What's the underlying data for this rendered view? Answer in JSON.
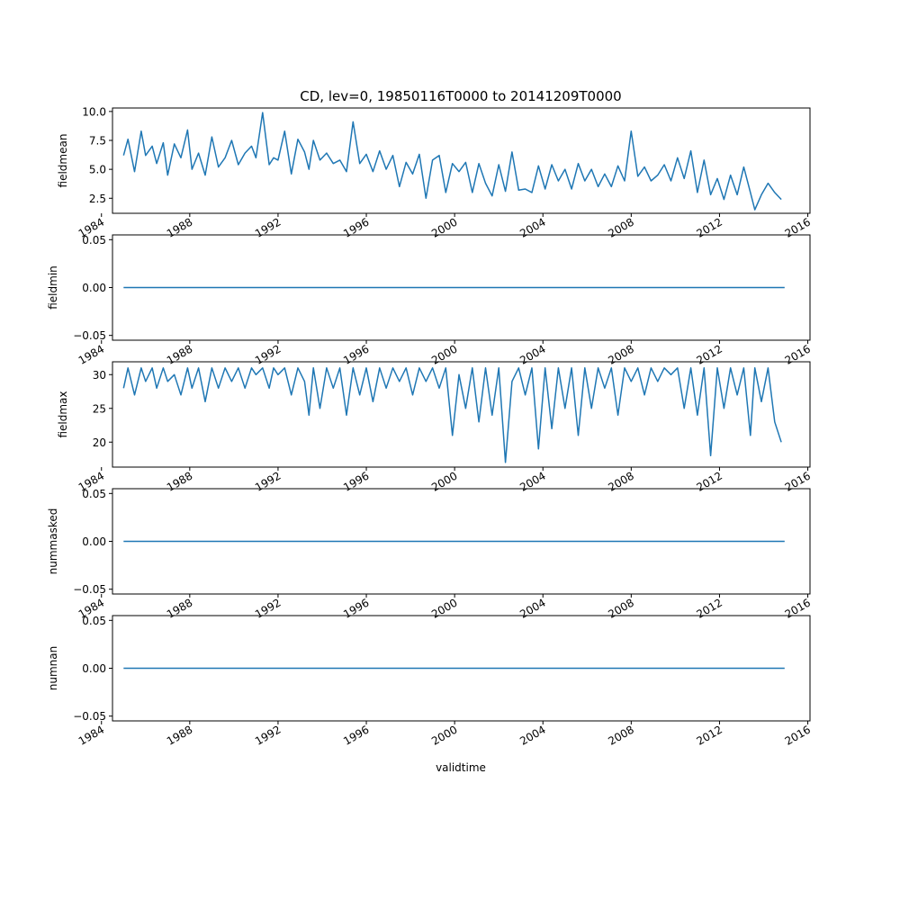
{
  "figure": {
    "title": "CD, lev=0, 19850116T0000 to 20141209T0000",
    "xlabel": "validtime"
  },
  "colors": {
    "line": "#1f77b4",
    "axes": "#000000",
    "background": "#ffffff"
  },
  "chart_data": [
    {
      "type": "line",
      "ylabel": "fieldmean",
      "xlim": [
        1984.5,
        2016.1
      ],
      "ylim": [
        1.2,
        10.3
      ],
      "yticks": [
        2.5,
        5.0,
        7.5,
        10.0
      ],
      "ytick_labels": [
        "2.5",
        "5.0",
        "7.5",
        "10.0"
      ],
      "xticks": [
        1984,
        1988,
        1992,
        1996,
        2000,
        2004,
        2008,
        2012,
        2016
      ],
      "xtick_labels": [
        "1984",
        "1988",
        "1992",
        "1996",
        "2000",
        "2004",
        "2008",
        "2012",
        "2016"
      ],
      "x": [
        1985.0,
        1985.2,
        1985.5,
        1985.8,
        1986.0,
        1986.3,
        1986.5,
        1986.8,
        1987.0,
        1987.3,
        1987.6,
        1987.9,
        1988.1,
        1988.4,
        1988.7,
        1989.0,
        1989.3,
        1989.6,
        1989.9,
        1990.2,
        1990.5,
        1990.8,
        1991.0,
        1991.3,
        1991.6,
        1991.8,
        1992.0,
        1992.3,
        1992.6,
        1992.9,
        1993.2,
        1993.4,
        1993.6,
        1993.9,
        1994.2,
        1994.5,
        1994.8,
        1995.1,
        1995.4,
        1995.7,
        1996.0,
        1996.3,
        1996.6,
        1996.9,
        1997.2,
        1997.5,
        1997.8,
        1998.1,
        1998.4,
        1998.7,
        1999.0,
        1999.3,
        1999.6,
        1999.9,
        2000.2,
        2000.5,
        2000.8,
        2001.1,
        2001.4,
        2001.7,
        2002.0,
        2002.3,
        2002.6,
        2002.9,
        2003.2,
        2003.5,
        2003.8,
        2004.1,
        2004.4,
        2004.7,
        2005.0,
        2005.3,
        2005.6,
        2005.9,
        2006.2,
        2006.5,
        2006.8,
        2007.1,
        2007.4,
        2007.7,
        2008.0,
        2008.3,
        2008.6,
        2008.9,
        2009.2,
        2009.5,
        2009.8,
        2010.1,
        2010.4,
        2010.7,
        2011.0,
        2011.3,
        2011.6,
        2011.9,
        2012.2,
        2012.5,
        2012.8,
        2013.1,
        2013.4,
        2013.6,
        2013.9,
        2014.2,
        2014.5,
        2014.8
      ],
      "series": [
        {
          "values": [
            6.2,
            7.6,
            4.8,
            8.3,
            6.2,
            7.0,
            5.5,
            7.3,
            4.5,
            7.2,
            6.0,
            8.4,
            5.0,
            6.4,
            4.5,
            7.8,
            5.2,
            6.0,
            7.5,
            5.4,
            6.4,
            7.0,
            6.0,
            9.9,
            5.4,
            6.0,
            5.8,
            8.3,
            4.6,
            7.6,
            6.5,
            5.0,
            7.5,
            5.8,
            6.4,
            5.5,
            5.8,
            4.8,
            9.1,
            5.5,
            6.3,
            4.8,
            6.6,
            5.0,
            6.2,
            3.5,
            5.6,
            4.6,
            6.3,
            2.5,
            5.8,
            6.2,
            3.0,
            5.5,
            4.8,
            5.6,
            3.0,
            5.5,
            3.8,
            2.7,
            5.4,
            3.1,
            6.5,
            3.2,
            3.3,
            3.0,
            5.3,
            3.3,
            5.4,
            4.0,
            5.0,
            3.3,
            5.5,
            4.0,
            5.0,
            3.5,
            4.6,
            3.5,
            5.3,
            4.0,
            8.3,
            4.4,
            5.2,
            4.0,
            4.5,
            5.4,
            4.0,
            6.0,
            4.2,
            6.6,
            3.0,
            5.8,
            2.8,
            4.2,
            2.4,
            4.5,
            2.8,
            5.2,
            3.0,
            1.5,
            2.8,
            3.8,
            3.0,
            2.4
          ]
        }
      ]
    },
    {
      "type": "line",
      "ylabel": "fieldmin",
      "xlim": [
        1984.5,
        2016.1
      ],
      "ylim": [
        -0.055,
        0.055
      ],
      "yticks": [
        -0.05,
        0.0,
        0.05
      ],
      "ytick_labels": [
        "−0.05",
        "0.00",
        "0.05"
      ],
      "xticks": [
        1984,
        1988,
        1992,
        1996,
        2000,
        2004,
        2008,
        2012,
        2016
      ],
      "xtick_labels": [
        "1984",
        "1988",
        "1992",
        "1996",
        "2000",
        "2004",
        "2008",
        "2012",
        "2016"
      ],
      "x": [
        1985.0,
        2014.95
      ],
      "series": [
        {
          "values": [
            0,
            0
          ]
        }
      ]
    },
    {
      "type": "line",
      "ylabel": "fieldmax",
      "xlim": [
        1984.5,
        2016.1
      ],
      "ylim": [
        16.3,
        31.9
      ],
      "yticks": [
        20,
        25,
        30
      ],
      "ytick_labels": [
        "20",
        "25",
        "30"
      ],
      "xticks": [
        1984,
        1988,
        1992,
        1996,
        2000,
        2004,
        2008,
        2012,
        2016
      ],
      "xtick_labels": [
        "1984",
        "1988",
        "1992",
        "1996",
        "2000",
        "2004",
        "2008",
        "2012",
        "2016"
      ],
      "x": [
        1985.0,
        1985.2,
        1985.5,
        1985.8,
        1986.0,
        1986.3,
        1986.5,
        1986.8,
        1987.0,
        1987.3,
        1987.6,
        1987.9,
        1988.1,
        1988.4,
        1988.7,
        1989.0,
        1989.3,
        1989.6,
        1989.9,
        1990.2,
        1990.5,
        1990.8,
        1991.0,
        1991.3,
        1991.6,
        1991.8,
        1992.0,
        1992.3,
        1992.6,
        1992.9,
        1993.2,
        1993.4,
        1993.6,
        1993.9,
        1994.2,
        1994.5,
        1994.8,
        1995.1,
        1995.4,
        1995.7,
        1996.0,
        1996.3,
        1996.6,
        1996.9,
        1997.2,
        1997.5,
        1997.8,
        1998.1,
        1998.4,
        1998.7,
        1999.0,
        1999.3,
        1999.6,
        1999.9,
        2000.2,
        2000.5,
        2000.8,
        2001.1,
        2001.4,
        2001.7,
        2002.0,
        2002.3,
        2002.6,
        2002.9,
        2003.2,
        2003.5,
        2003.8,
        2004.1,
        2004.4,
        2004.7,
        2005.0,
        2005.3,
        2005.6,
        2005.9,
        2006.2,
        2006.5,
        2006.8,
        2007.1,
        2007.4,
        2007.7,
        2008.0,
        2008.3,
        2008.6,
        2008.9,
        2009.2,
        2009.5,
        2009.8,
        2010.1,
        2010.4,
        2010.7,
        2011.0,
        2011.3,
        2011.6,
        2011.9,
        2012.2,
        2012.5,
        2012.8,
        2013.1,
        2013.4,
        2013.6,
        2013.9,
        2014.2,
        2014.5,
        2014.8
      ],
      "series": [
        {
          "values": [
            28,
            31,
            27,
            31,
            29,
            31,
            28,
            31,
            29,
            30,
            27,
            31,
            28,
            31,
            26,
            31,
            28,
            31,
            29,
            31,
            28,
            31,
            30,
            31,
            28,
            31,
            30,
            31,
            27,
            31,
            29,
            24,
            31,
            25,
            31,
            28,
            31,
            24,
            31,
            27,
            31,
            26,
            31,
            28,
            31,
            29,
            31,
            27,
            31,
            29,
            31,
            28,
            31,
            21,
            30,
            25,
            31,
            23,
            31,
            24,
            31,
            17,
            29,
            31,
            27,
            31,
            19,
            31,
            22,
            31,
            25,
            31,
            21,
            31,
            25,
            31,
            28,
            31,
            24,
            31,
            29,
            31,
            27,
            31,
            29,
            31,
            30,
            31,
            25,
            31,
            24,
            31,
            18,
            31,
            25,
            31,
            27,
            31,
            21,
            31,
            26,
            31,
            23,
            20
          ]
        }
      ]
    },
    {
      "type": "line",
      "ylabel": "nummasked",
      "xlim": [
        1984.5,
        2016.1
      ],
      "ylim": [
        -0.055,
        0.055
      ],
      "yticks": [
        -0.05,
        0.0,
        0.05
      ],
      "ytick_labels": [
        "−0.05",
        "0.00",
        "0.05"
      ],
      "xticks": [
        1984,
        1988,
        1992,
        1996,
        2000,
        2004,
        2008,
        2012,
        2016
      ],
      "xtick_labels": [
        "1984",
        "1988",
        "1992",
        "1996",
        "2000",
        "2004",
        "2008",
        "2012",
        "2016"
      ],
      "x": [
        1985.0,
        2014.95
      ],
      "series": [
        {
          "values": [
            0,
            0
          ]
        }
      ]
    },
    {
      "type": "line",
      "ylabel": "numnan",
      "xlim": [
        1984.5,
        2016.1
      ],
      "ylim": [
        -0.055,
        0.055
      ],
      "yticks": [
        -0.05,
        0.0,
        0.05
      ],
      "ytick_labels": [
        "−0.05",
        "0.00",
        "0.05"
      ],
      "xticks": [
        1984,
        1988,
        1992,
        1996,
        2000,
        2004,
        2008,
        2012,
        2016
      ],
      "xtick_labels": [
        "1984",
        "1988",
        "1992",
        "1996",
        "2000",
        "2004",
        "2008",
        "2012",
        "2016"
      ],
      "x": [
        1985.0,
        2014.95
      ],
      "series": [
        {
          "values": [
            0,
            0
          ]
        }
      ]
    }
  ]
}
